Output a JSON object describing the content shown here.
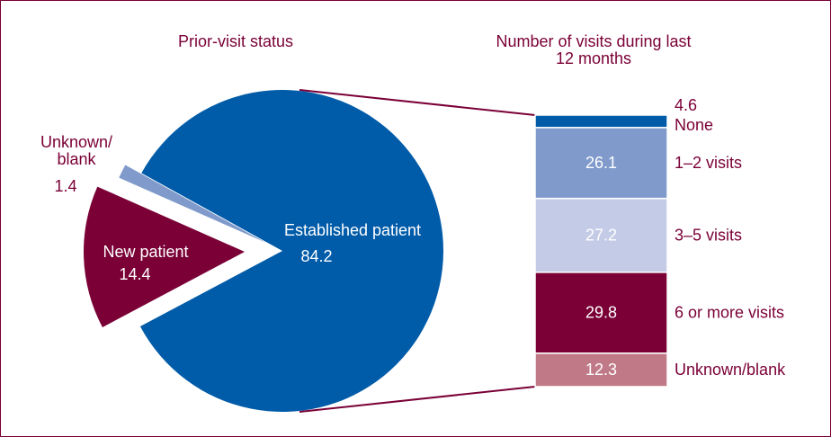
{
  "chart_data": [
    {
      "type": "pie",
      "title": "Prior-visit status",
      "categories": [
        "Established patient",
        "New patient",
        "Unknown/ blank"
      ],
      "values": [
        84.2,
        14.4,
        1.4
      ],
      "colors": [
        "#005ba8",
        "#7a0036",
        "#7f9acb"
      ]
    },
    {
      "type": "bar",
      "stacked": true,
      "title": "Number of visits during last 12 months",
      "categories": [
        "None",
        "1–2 visits",
        "3–5 visits",
        "6 or more visits",
        "Unknown/blank"
      ],
      "values": [
        4.6,
        26.1,
        27.2,
        29.8,
        12.3
      ],
      "colors": [
        "#005ba8",
        "#7f9acb",
        "#c4cbe6",
        "#7a0036",
        "#c07a87"
      ]
    }
  ]
}
